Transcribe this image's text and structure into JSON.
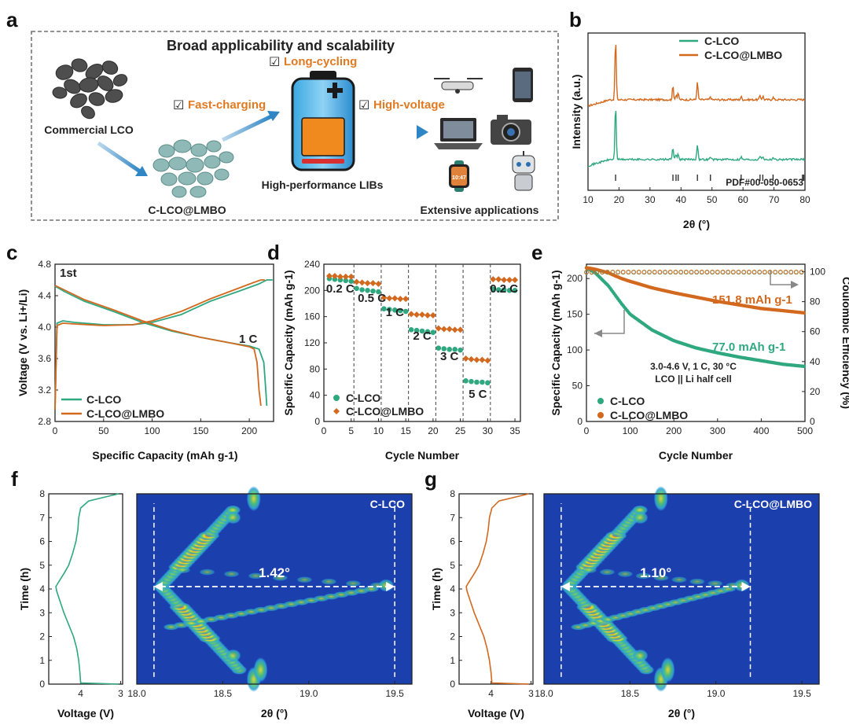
{
  "colors": {
    "clco": "#2fa880",
    "lmbo": "#d2691e",
    "axis": "#222222",
    "heat_bg": "#1c3fae"
  },
  "panel_labels": {
    "a": "a",
    "b": "b",
    "c": "c",
    "d": "d",
    "e": "e",
    "f": "f",
    "g": "g"
  },
  "schematic": {
    "title": "Broad applicability and scalability",
    "feature_long_cycling": "Long-cycling",
    "feature_fast_charging": "Fast-charging",
    "feature_high_voltage": "High-voltage",
    "check_mark": "☑",
    "label_commercial": "Commercial LCO",
    "label_coated": "C-LCO@LMBO",
    "label_battery": "High-performance LIBs",
    "label_applications": "Extensive applications",
    "watch_time": "10:47"
  },
  "chart_data": [
    {
      "panel": "b",
      "type": "line",
      "title": "",
      "xlabel": "2θ (°)",
      "ylabel": "Intensity (a.u.)",
      "xlim": [
        10,
        80
      ],
      "xticks": [
        "10",
        "20",
        "30",
        "40",
        "50",
        "60",
        "70",
        "80"
      ],
      "legend": [
        "C-LCO",
        "C-LCO@LMBO"
      ],
      "peaks_2theta": [
        18.9,
        37.4,
        38.4,
        39.1,
        45.3,
        49.5,
        59.4,
        65.5,
        66.4,
        69.7
      ],
      "peak_heights": [
        1.0,
        0.22,
        0.08,
        0.1,
        0.28,
        0.05,
        0.05,
        0.07,
        0.06,
        0.04
      ],
      "reference": "PDF#00-050-0653",
      "reference_lines": [
        18.9,
        37.4,
        38.4,
        39.1,
        45.3,
        49.5,
        59.4,
        65.5,
        66.4,
        69.7,
        79.2,
        79.6
      ]
    },
    {
      "panel": "c",
      "type": "line",
      "xlabel": "Specific Capacity (mAh g-1)",
      "ylabel": "Voltage (V vs. Li+/Li)",
      "xlim": [
        0,
        225
      ],
      "ylim": [
        2.8,
        4.8
      ],
      "xticks": [
        "0",
        "50",
        "100",
        "150",
        "200"
      ],
      "yticks": [
        "2.8",
        "3.2",
        "3.6",
        "4.0",
        "4.4",
        "4.8"
      ],
      "annotation_cycle": "1st",
      "annotation_rate": "1 C",
      "legend": [
        "C-LCO",
        "C-LCO@LMBO"
      ],
      "series": [
        {
          "name": "C-LCO charge",
          "x": [
            0,
            2,
            8,
            20,
            50,
            80,
            100,
            130,
            160,
            190,
            210,
            218,
            224
          ],
          "y": [
            2.95,
            4.05,
            4.08,
            4.06,
            4.03,
            4.03,
            4.06,
            4.16,
            4.33,
            4.46,
            4.55,
            4.6,
            4.6
          ]
        },
        {
          "name": "C-LCO discharge",
          "x": [
            0,
            10,
            30,
            60,
            90,
            120,
            150,
            180,
            200,
            210,
            215,
            217,
            218
          ],
          "y": [
            4.52,
            4.45,
            4.33,
            4.2,
            4.06,
            3.95,
            3.87,
            3.8,
            3.76,
            3.72,
            3.55,
            3.2,
            3.0
          ]
        },
        {
          "name": "C-LCO@LMBO charge",
          "x": [
            0,
            2,
            8,
            20,
            50,
            80,
            100,
            130,
            160,
            190,
            205,
            212,
            216
          ],
          "y": [
            2.95,
            4.02,
            4.05,
            4.04,
            4.02,
            4.03,
            4.08,
            4.2,
            4.36,
            4.5,
            4.57,
            4.6,
            4.6
          ]
        },
        {
          "name": "C-LCO@LMBO discharge",
          "x": [
            0,
            10,
            30,
            60,
            90,
            120,
            150,
            180,
            200,
            205,
            208,
            210,
            212
          ],
          "y": [
            4.53,
            4.47,
            4.35,
            4.22,
            4.08,
            3.96,
            3.87,
            3.8,
            3.75,
            3.72,
            3.55,
            3.2,
            3.0
          ]
        }
      ]
    },
    {
      "panel": "d",
      "type": "scatter",
      "xlabel": "Cycle Number",
      "ylabel": "Specific Capacity (mAh g-1)",
      "xlim": [
        0,
        36
      ],
      "ylim": [
        0,
        240
      ],
      "xticks": [
        "0",
        "5",
        "10",
        "15",
        "20",
        "25",
        "30",
        "35"
      ],
      "yticks": [
        "0",
        "40",
        "80",
        "120",
        "160",
        "200",
        "240"
      ],
      "rate_labels": [
        "0.2 C",
        "0.5 C",
        "1 C",
        "2 C",
        "3 C",
        "5 C",
        "0.2 C"
      ],
      "legend": [
        "C-LCO",
        "C-LCO@LMBO"
      ],
      "series": [
        {
          "name": "C-LCO",
          "x": [
            1,
            2,
            3,
            4,
            5,
            6,
            7,
            8,
            9,
            10,
            11,
            12,
            13,
            14,
            15,
            16,
            17,
            18,
            19,
            20,
            21,
            22,
            23,
            24,
            25,
            26,
            27,
            28,
            29,
            30,
            31,
            32,
            33,
            34,
            35
          ],
          "values": [
            218,
            217,
            216,
            215,
            214,
            203,
            201,
            200,
            199,
            198,
            172,
            171,
            170,
            169,
            168,
            140,
            139,
            138,
            137,
            136,
            112,
            111,
            110,
            110,
            109,
            62,
            61,
            60,
            60,
            59,
            202,
            201,
            201,
            200,
            200
          ]
        },
        {
          "name": "C-LCO@LMBO",
          "x": [
            1,
            2,
            3,
            4,
            5,
            6,
            7,
            8,
            9,
            10,
            11,
            12,
            13,
            14,
            15,
            16,
            17,
            18,
            19,
            20,
            21,
            22,
            23,
            24,
            25,
            26,
            27,
            28,
            29,
            30,
            31,
            32,
            33,
            34,
            35
          ],
          "values": [
            222,
            222,
            221,
            221,
            221,
            213,
            212,
            211,
            211,
            210,
            189,
            188,
            188,
            187,
            187,
            164,
            163,
            163,
            162,
            162,
            142,
            141,
            141,
            140,
            140,
            96,
            95,
            94,
            94,
            93,
            217,
            217,
            216,
            216,
            216
          ]
        }
      ]
    },
    {
      "panel": "e",
      "type": "scatter",
      "xlabel": "Cycle Number",
      "ylabel": "Specific Capacity (mAh g-1)",
      "ylabel_right": "Coulombic Efficiency (%)",
      "xlim": [
        0,
        500
      ],
      "ylim": [
        0,
        220
      ],
      "ylim_right": [
        0,
        105
      ],
      "xticks": [
        "0",
        "100",
        "200",
        "300",
        "400",
        "500"
      ],
      "yticks": [
        "0",
        "50",
        "100",
        "150",
        "200"
      ],
      "yticks_right": [
        "0",
        "20",
        "40",
        "60",
        "80",
        "100"
      ],
      "annotation_lmbo": "151.8 mAh g-1",
      "annotation_clco": "77.0 mAh g-1",
      "conditions": "3.0-4.6 V, 1 C, 30 °C",
      "cell": "LCO || Li half cell",
      "legend": [
        "C-LCO",
        "C-LCO@LMBO"
      ],
      "series": [
        {
          "name": "C-LCO capacity",
          "x": [
            0,
            20,
            50,
            80,
            100,
            150,
            200,
            250,
            300,
            350,
            400,
            450,
            500
          ],
          "values": [
            215,
            208,
            190,
            165,
            150,
            128,
            113,
            103,
            96,
            90,
            85,
            80,
            77
          ]
        },
        {
          "name": "C-LCO@LMBO capacity",
          "x": [
            0,
            20,
            50,
            80,
            100,
            150,
            200,
            250,
            300,
            350,
            400,
            450,
            500
          ],
          "values": [
            215,
            213,
            208,
            200,
            196,
            187,
            180,
            174,
            168,
            163,
            158,
            155,
            151.8
          ]
        },
        {
          "name": "C-LCO CE",
          "x": [
            0,
            50,
            100,
            200,
            300,
            400,
            500
          ],
          "values": [
            99.5,
            99.6,
            99.6,
            99.6,
            99.6,
            99.6,
            99.6
          ]
        },
        {
          "name": "C-LCO@LMBO CE",
          "x": [
            0,
            50,
            100,
            200,
            300,
            400,
            500
          ],
          "values": [
            99.7,
            99.8,
            99.8,
            99.8,
            99.8,
            99.8,
            99.8
          ]
        }
      ]
    },
    {
      "panel": "f",
      "type": "heatmap",
      "sample": "C-LCO",
      "profile_xlabel": "Voltage (V)",
      "profile_ylabel": "Time (h)",
      "profile_xticks": [
        "4",
        "3"
      ],
      "xlabel": "2θ (°)",
      "xticks": [
        "18.0",
        "18.5",
        "19.0",
        "19.5"
      ],
      "yticks": [
        "0",
        "1",
        "2",
        "3",
        "4",
        "5",
        "6",
        "7",
        "8"
      ],
      "xlim": [
        18.0,
        19.6
      ],
      "ylim": [
        0,
        8
      ],
      "shift_label": "1.42°",
      "shift_from": 18.1,
      "shift_to": 19.5,
      "profile": {
        "t": [
          0,
          0.05,
          0.5,
          1,
          1.5,
          2,
          2.5,
          3,
          3.5,
          3.9,
          4.1,
          4.3,
          4.7,
          5,
          5.5,
          6,
          6.5,
          7,
          7.4,
          7.7,
          7.9,
          8
        ],
        "v": [
          3.05,
          4.0,
          4.02,
          4.05,
          4.1,
          4.18,
          4.3,
          4.42,
          4.52,
          4.6,
          4.62,
          4.55,
          4.4,
          4.3,
          4.2,
          4.12,
          4.07,
          4.05,
          4.0,
          3.8,
          3.3,
          3.05
        ]
      }
    },
    {
      "panel": "g",
      "type": "heatmap",
      "sample": "C-LCO@LMBO",
      "profile_xlabel": "Voltage (V)",
      "profile_ylabel": "Time (h)",
      "profile_xticks": [
        "4",
        "3"
      ],
      "xlabel": "2θ (°)",
      "xticks": [
        "18.0",
        "18.5",
        "19.0",
        "19.5"
      ],
      "yticks": [
        "0",
        "1",
        "2",
        "3",
        "4",
        "5",
        "6",
        "7",
        "8"
      ],
      "xlim": [
        18.0,
        19.6
      ],
      "ylim": [
        0,
        8
      ],
      "shift_label": "1.10°",
      "shift_from": 18.1,
      "shift_to": 19.2,
      "profile": {
        "t": [
          0,
          0.05,
          0.5,
          1,
          1.5,
          2,
          2.5,
          3,
          3.5,
          3.9,
          4.1,
          4.3,
          4.7,
          5,
          5.5,
          6,
          6.5,
          7,
          7.4,
          7.7,
          7.9,
          8
        ],
        "v": [
          3.05,
          3.98,
          4.0,
          4.04,
          4.1,
          4.18,
          4.3,
          4.42,
          4.52,
          4.6,
          4.62,
          4.55,
          4.4,
          4.3,
          4.2,
          4.12,
          4.07,
          4.04,
          3.98,
          3.8,
          3.3,
          3.05
        ]
      }
    }
  ]
}
